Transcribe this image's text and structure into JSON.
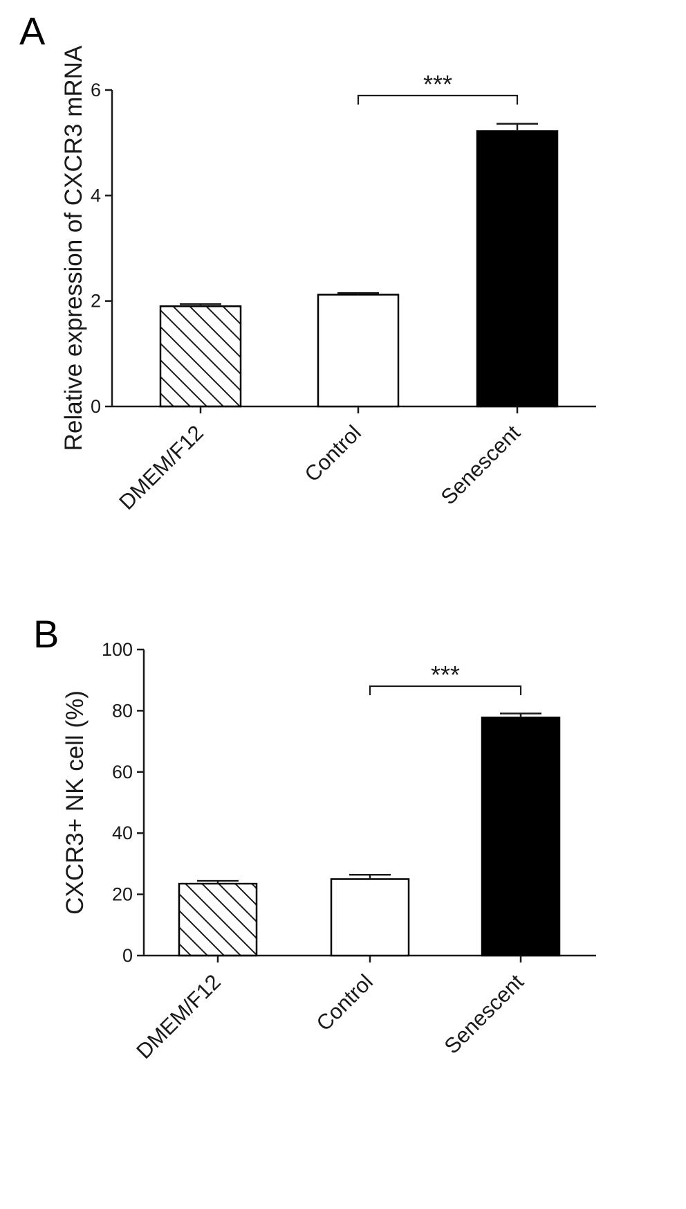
{
  "chart_data": [
    {
      "panel": "A",
      "type": "bar",
      "categories": [
        "DMEM/F12",
        "Control",
        "Senescent"
      ],
      "values": [
        1.9,
        2.12,
        5.22
      ],
      "errors": [
        0.04,
        0.03,
        0.14
      ],
      "bar_styles": [
        "hatched",
        "white",
        "black"
      ],
      "ylabel": "Relative expression of CXCR3 mRNA",
      "ylim": [
        0,
        6
      ],
      "yticks": [
        0,
        2,
        4,
        6
      ],
      "significance": {
        "from": 1,
        "to": 2,
        "label": "***"
      }
    },
    {
      "panel": "B",
      "type": "bar",
      "categories": [
        "DMEM/F12",
        "Control",
        "Senescent"
      ],
      "values": [
        23.5,
        25.0,
        77.8
      ],
      "errors": [
        0.9,
        1.4,
        1.3
      ],
      "bar_styles": [
        "hatched",
        "white",
        "black"
      ],
      "ylabel": "CXCR3+ NK cell (%)",
      "ylim": [
        0,
        100
      ],
      "yticks": [
        0,
        20,
        40,
        60,
        80,
        100
      ],
      "significance": {
        "from": 1,
        "to": 2,
        "label": "***"
      }
    }
  ]
}
